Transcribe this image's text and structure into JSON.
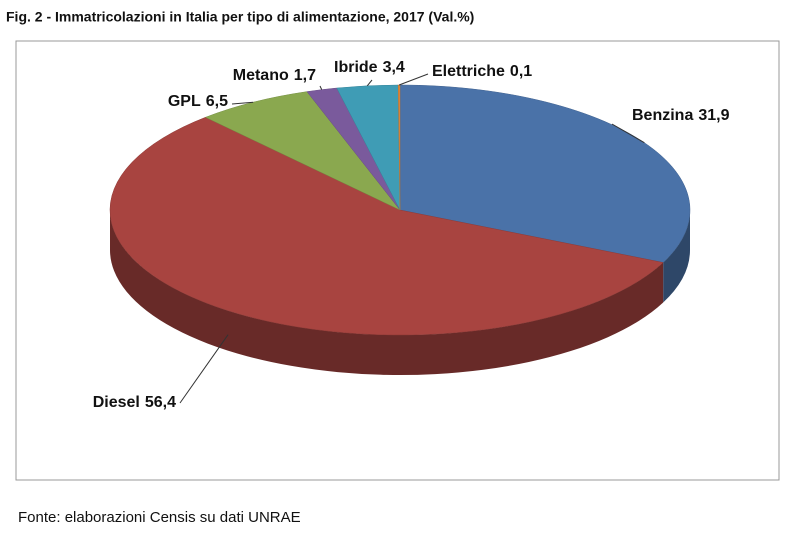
{
  "chart_data": {
    "type": "pie",
    "title": "Fig. 2 - Immatricolazioni in Italia per tipo di alimentazione, 2017 (Val.%)",
    "categories": [
      "Benzina",
      "Diesel",
      "GPL",
      "Metano",
      "Ibride",
      "Elettriche"
    ],
    "values": [
      31.9,
      56.4,
      6.5,
      1.7,
      3.4,
      0.1
    ],
    "value_labels": [
      "31,9",
      "56,4",
      "6,5",
      "1,7",
      "3,4",
      "0,1"
    ],
    "colors": [
      "#4a72a8",
      "#a84440",
      "#8aa84f",
      "#7a5a9c",
      "#3f9cb5",
      "#e0883a"
    ],
    "source": "Fonte: elaborazioni Censis su dati UNRAE"
  }
}
